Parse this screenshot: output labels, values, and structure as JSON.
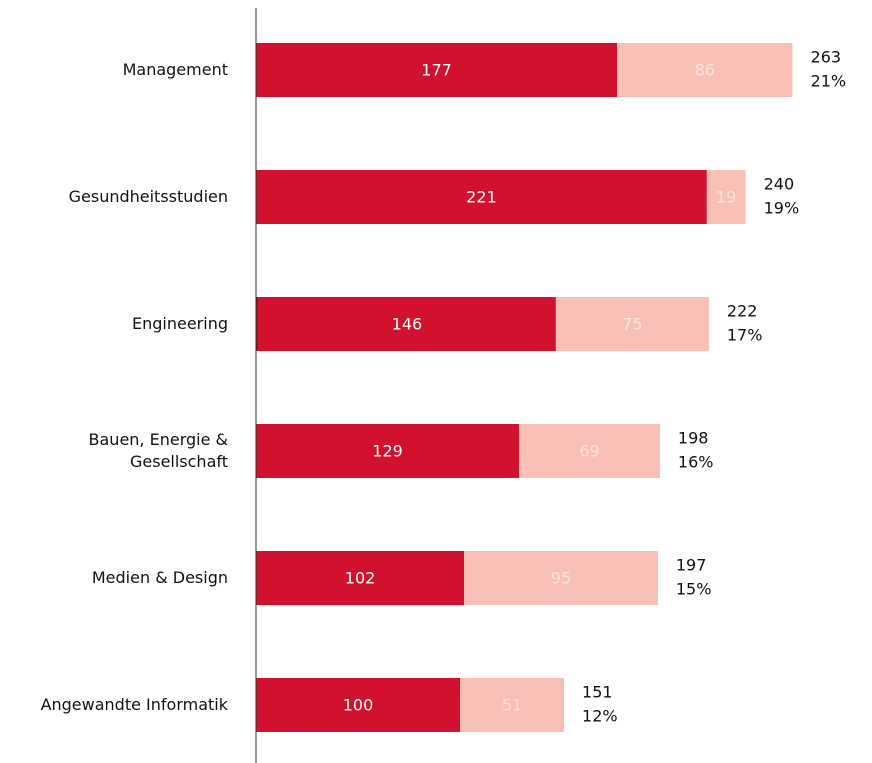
{
  "chart_data": {
    "type": "stacked-barh",
    "categories": [
      "Management",
      "Gesundheitsstudien",
      "Engineering",
      "Bauen, Energie &\nGesellschaft",
      "Medien & Design",
      "Angewandte Informatik"
    ],
    "series": [
      {
        "color": "#9e0b22",
        "text_color": "#ffffff",
        "values": [
          null,
          null,
          1,
          null,
          null,
          null
        ]
      },
      {
        "color": "#d2112f",
        "text_color": "#ffffff",
        "values": [
          177,
          221,
          146,
          129,
          102,
          100
        ]
      },
      {
        "color": "#f7bfb5",
        "text_color": "#fde4df",
        "values": [
          86,
          19,
          75,
          69,
          95,
          51
        ]
      }
    ],
    "totals": {
      "values": [
        263,
        240,
        222,
        198,
        197,
        151
      ]
    },
    "shares": {
      "values": [
        21,
        19,
        17,
        16,
        15,
        12
      ],
      "value_labels": [
        "21%",
        "19%",
        "17%",
        "16%",
        "15%",
        "12%"
      ]
    },
    "xlim": [
      0,
      300
    ]
  }
}
